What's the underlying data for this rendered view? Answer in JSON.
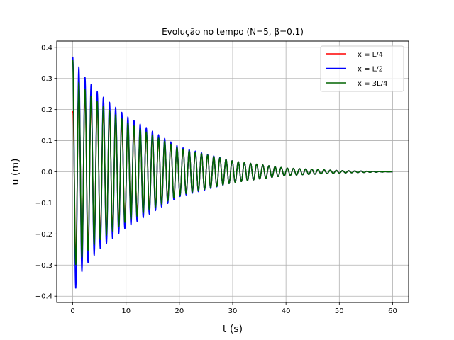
{
  "chart_data": {
    "type": "line",
    "title": "Evolução no tempo (N=5, β=0.1)",
    "xlabel": "t (s)",
    "ylabel": "u (m)",
    "xlim": [
      -3,
      63
    ],
    "ylim": [
      -0.42,
      0.42
    ],
    "xticks": [
      0,
      10,
      20,
      30,
      40,
      50,
      60
    ],
    "yticks": [
      -0.4,
      -0.3,
      -0.2,
      -0.1,
      0.0,
      0.1,
      0.2,
      0.3,
      0.4
    ],
    "xtick_labels": [
      "0",
      "10",
      "20",
      "30",
      "40",
      "50",
      "60"
    ],
    "ytick_labels": [
      "−0.4",
      "−0.3",
      "−0.2",
      "−0.1",
      "0.0",
      "0.1",
      "0.2",
      "0.3",
      "0.4"
    ],
    "grid": true,
    "legend_position": "top-right",
    "series": [
      {
        "name": "x = L/4",
        "color": "#ff0000",
        "t": [
          0.0,
          0.5,
          1.0,
          1.5,
          2.0,
          3.0,
          5.0,
          10.0,
          20.0,
          30.0,
          40.0,
          50.0,
          60.0
        ],
        "envelope": [
          0.19,
          0.29,
          0.28,
          0.27,
          0.26,
          0.24,
          0.21,
          0.15,
          0.075,
          0.035,
          0.012,
          0.004,
          0.0
        ],
        "start_value": 0.19,
        "period": 1.15
      },
      {
        "name": "x = L/2",
        "color": "#0000ff",
        "t": [
          0.0,
          0.5,
          1.0,
          1.5,
          2.0,
          3.0,
          5.0,
          10.0,
          20.0,
          30.0,
          40.0,
          50.0,
          60.0
        ],
        "envelope": [
          0.37,
          0.38,
          0.34,
          0.33,
          0.31,
          0.29,
          0.25,
          0.18,
          0.08,
          0.035,
          0.012,
          0.004,
          0.0
        ],
        "start_value": 0.37,
        "period": 1.15
      },
      {
        "name": "x = 3L/4",
        "color": "#006400",
        "t": [
          0.0,
          0.5,
          1.0,
          1.5,
          2.0,
          3.0,
          5.0,
          10.0,
          20.0,
          30.0,
          40.0,
          50.0,
          60.0
        ],
        "envelope": [
          0.36,
          0.3,
          0.29,
          0.28,
          0.27,
          0.25,
          0.22,
          0.16,
          0.075,
          0.035,
          0.012,
          0.004,
          0.0
        ],
        "start_value": 0.36,
        "period": 1.15
      }
    ]
  }
}
